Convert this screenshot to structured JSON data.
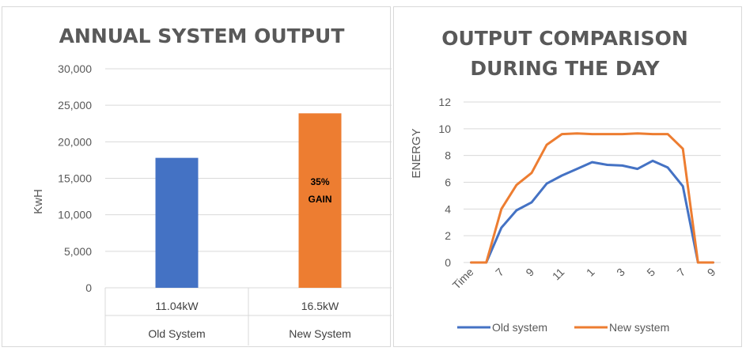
{
  "chart_data": [
    {
      "type": "bar",
      "title": "ANNUAL SYSTEM OUTPUT",
      "ylabel": "KwH",
      "xlabel": "",
      "ylim": [
        0,
        30000
      ],
      "yticks": [
        "30,000",
        "25,000",
        "20,000",
        "15,000",
        "10,000",
        "5,000",
        "0"
      ],
      "ytick_values": [
        30000,
        25000,
        20000,
        15000,
        10000,
        5000,
        0
      ],
      "categories": [
        "11.04kW",
        "16.5kW"
      ],
      "category_groups": [
        "Old System",
        "New System"
      ],
      "values": [
        17800,
        23900
      ],
      "colors": [
        "#4472c4",
        "#ed7d31"
      ],
      "annotations": [
        {
          "category": "16.5kW",
          "lines": [
            "35%",
            "GAIN"
          ]
        }
      ],
      "grid": true
    },
    {
      "type": "line",
      "title_lines": [
        "OUTPUT COMPARISON",
        "DURING THE DAY"
      ],
      "ylabel": "ENERGY",
      "xlabel": "",
      "ylim": [
        0,
        12
      ],
      "yticks": [
        "12",
        "10",
        "8",
        "6",
        "4",
        "2",
        "0"
      ],
      "ytick_values": [
        12,
        10,
        8,
        6,
        4,
        2,
        0
      ],
      "x_labels": [
        "Time",
        "7",
        "9",
        "11",
        "1",
        "3",
        "5",
        "7",
        "9"
      ],
      "x_label_positions": [
        0,
        2,
        4,
        6,
        8,
        10,
        12,
        14,
        16
      ],
      "x_count": 17,
      "grid": true,
      "legend_position": "bottom",
      "series": [
        {
          "name": "Old system",
          "color": "#4472c4",
          "values": [
            0,
            0,
            2.6,
            3.9,
            4.5,
            5.9,
            6.5,
            7.0,
            7.5,
            7.3,
            7.25,
            7.0,
            7.6,
            7.1,
            5.7,
            0,
            0
          ]
        },
        {
          "name": "New system",
          "color": "#ed7d31",
          "values": [
            0,
            0,
            4.0,
            5.8,
            6.7,
            8.8,
            9.6,
            9.65,
            9.6,
            9.6,
            9.6,
            9.65,
            9.6,
            9.6,
            8.5,
            0,
            0
          ]
        }
      ]
    }
  ]
}
